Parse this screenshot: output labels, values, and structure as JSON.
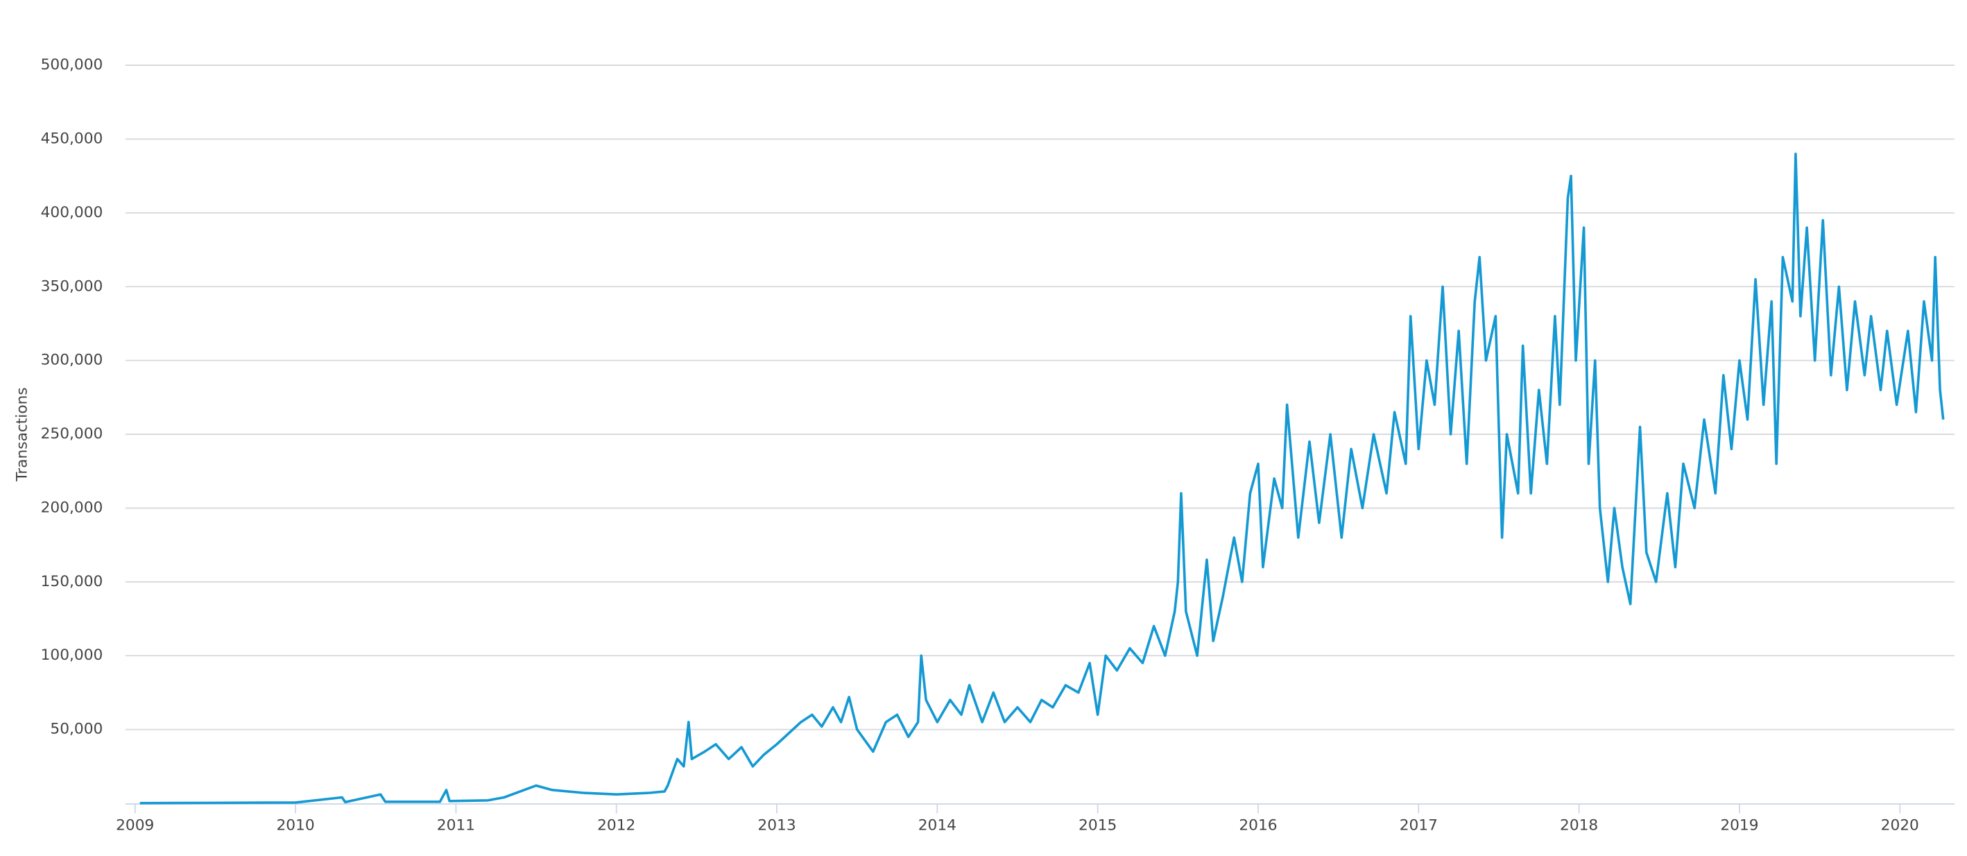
{
  "chart_data": {
    "type": "line",
    "y_label": "Transactions",
    "color": "#1499d3",
    "x": [
      2009.03,
      2009.5,
      2010.0,
      2010.29,
      2010.31,
      2010.53,
      2010.56,
      2010.9,
      2010.94,
      2010.96,
      2011.2,
      2011.3,
      2011.45,
      2011.5,
      2011.6,
      2011.8,
      2012.0,
      2012.2,
      2012.3,
      2012.32,
      2012.38,
      2012.42,
      2012.45,
      2012.47,
      2012.55,
      2012.62,
      2012.7,
      2012.78,
      2012.85,
      2012.92,
      2013.0,
      2013.08,
      2013.15,
      2013.22,
      2013.28,
      2013.35,
      2013.4,
      2013.45,
      2013.5,
      2013.6,
      2013.68,
      2013.75,
      2013.82,
      2013.88,
      2013.9,
      2013.93,
      2014.0,
      2014.08,
      2014.15,
      2014.2,
      2014.28,
      2014.35,
      2014.42,
      2014.5,
      2014.58,
      2014.65,
      2014.72,
      2014.8,
      2014.88,
      2014.95,
      2015.0,
      2015.05,
      2015.12,
      2015.2,
      2015.28,
      2015.35,
      2015.42,
      2015.48,
      2015.5,
      2015.52,
      2015.55,
      2015.62,
      2015.68,
      2015.72,
      2015.78,
      2015.85,
      2015.9,
      2015.95,
      2016.0,
      2016.03,
      2016.1,
      2016.15,
      2016.18,
      2016.25,
      2016.32,
      2016.38,
      2016.45,
      2016.52,
      2016.58,
      2016.65,
      2016.72,
      2016.8,
      2016.85,
      2016.92,
      2016.95,
      2017.0,
      2017.05,
      2017.1,
      2017.15,
      2017.2,
      2017.25,
      2017.3,
      2017.35,
      2017.38,
      2017.42,
      2017.48,
      2017.52,
      2017.55,
      2017.62,
      2017.65,
      2017.7,
      2017.75,
      2017.8,
      2017.85,
      2017.88,
      2017.93,
      2017.95,
      2017.98,
      2018.03,
      2018.06,
      2018.1,
      2018.13,
      2018.18,
      2018.22,
      2018.27,
      2018.32,
      2018.38,
      2018.42,
      2018.48,
      2018.55,
      2018.6,
      2018.65,
      2018.72,
      2018.78,
      2018.85,
      2018.9,
      2018.95,
      2019.0,
      2019.05,
      2019.1,
      2019.15,
      2019.2,
      2019.23,
      2019.27,
      2019.33,
      2019.35,
      2019.38,
      2019.42,
      2019.47,
      2019.52,
      2019.57,
      2019.62,
      2019.67,
      2019.72,
      2019.78,
      2019.82,
      2019.88,
      2019.92,
      2019.98,
      2020.05,
      2020.1,
      2020.15,
      2020.2,
      2020.22,
      2020.25,
      2020.27
    ],
    "values": [
      100,
      300,
      500,
      4000,
      800,
      6000,
      1000,
      1000,
      9000,
      1500,
      2000,
      4000,
      10000,
      12000,
      9000,
      7000,
      6000,
      7000,
      8000,
      12000,
      30000,
      25000,
      55000,
      30000,
      35000,
      40000,
      30000,
      38000,
      25000,
      33000,
      40000,
      48000,
      55000,
      60000,
      52000,
      65000,
      55000,
      72000,
      50000,
      35000,
      55000,
      60000,
      45000,
      55000,
      100000,
      70000,
      55000,
      70000,
      60000,
      80000,
      55000,
      75000,
      55000,
      65000,
      55000,
      70000,
      65000,
      80000,
      75000,
      95000,
      60000,
      100000,
      90000,
      105000,
      95000,
      120000,
      100000,
      130000,
      150000,
      210000,
      130000,
      100000,
      165000,
      110000,
      140000,
      180000,
      150000,
      210000,
      230000,
      160000,
      220000,
      200000,
      270000,
      180000,
      245000,
      190000,
      250000,
      180000,
      240000,
      200000,
      250000,
      210000,
      265000,
      230000,
      330000,
      240000,
      300000,
      270000,
      350000,
      250000,
      320000,
      230000,
      340000,
      370000,
      300000,
      330000,
      180000,
      250000,
      210000,
      310000,
      210000,
      280000,
      230000,
      330000,
      270000,
      410000,
      425000,
      300000,
      390000,
      230000,
      300000,
      200000,
      150000,
      200000,
      160000,
      135000,
      255000,
      170000,
      150000,
      210000,
      160000,
      230000,
      200000,
      260000,
      210000,
      290000,
      240000,
      300000,
      260000,
      355000,
      270000,
      340000,
      230000,
      370000,
      340000,
      440000,
      330000,
      390000,
      300000,
      395000,
      290000,
      350000,
      280000,
      340000,
      290000,
      330000,
      280000,
      320000,
      270000,
      320000,
      265000,
      340000,
      300000,
      370000,
      280000,
      260000
    ],
    "xlim": [
      2008.94,
      2020.34
    ],
    "xticks": [
      2009,
      2010,
      2011,
      2012,
      2013,
      2014,
      2015,
      2016,
      2017,
      2018,
      2019,
      2020
    ],
    "ylim": [
      0,
      500000
    ],
    "yticks": [
      {
        "value": 50000,
        "label": "50,000"
      },
      {
        "value": 100000,
        "label": "100,000"
      },
      {
        "value": 150000,
        "label": "150,000"
      },
      {
        "value": 200000,
        "label": "200,000"
      },
      {
        "value": 250000,
        "label": "250,000"
      },
      {
        "value": 300000,
        "label": "300,000"
      },
      {
        "value": 350000,
        "label": "350,000"
      },
      {
        "value": 400000,
        "label": "400,000"
      },
      {
        "value": 450000,
        "label": "450,000"
      },
      {
        "value": 500000,
        "label": "500,000"
      }
    ],
    "grid": true
  }
}
